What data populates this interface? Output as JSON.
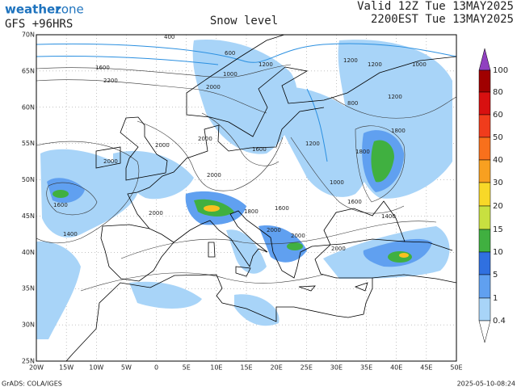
{
  "header": {
    "logo_left": "weather",
    "logo_right": "zone",
    "model": "GFS +96HRS",
    "title": "Snow level",
    "valid_utc": "Valid 12Z Tue 13MAY2025",
    "valid_local": "2200EST Tue 13MAY2025"
  },
  "latitude_labels": [
    "70N",
    "65N",
    "60N",
    "55N",
    "50N",
    "45N",
    "40N",
    "35N",
    "30N",
    "25N"
  ],
  "longitude_labels": [
    "20W",
    "15W",
    "10W",
    "5W",
    "0",
    "5E",
    "10E",
    "15E",
    "20E",
    "25E",
    "30E",
    "35E",
    "40E",
    "45E",
    "50E"
  ],
  "colorbar_labels": [
    "100",
    "80",
    "60",
    "50",
    "40",
    "30",
    "20",
    "15",
    "10",
    "5",
    "1",
    "0.4"
  ],
  "contour_labels": [
    "400",
    "600",
    "1200",
    "1200",
    "1200",
    "1000",
    "1600",
    "2200",
    "2000",
    "1000",
    "800",
    "1200",
    "1800",
    "2000",
    "2000",
    "1600",
    "1200",
    "1800",
    "2000",
    "2000",
    "1000",
    "1600",
    "1400",
    "1600",
    "2000",
    "1800",
    "1600",
    "2000",
    "2000",
    "1400",
    "2000"
  ],
  "footer": {
    "credit": "GrADS: COLA/IGES",
    "timestamp": "2025-05-10-08:24"
  }
}
